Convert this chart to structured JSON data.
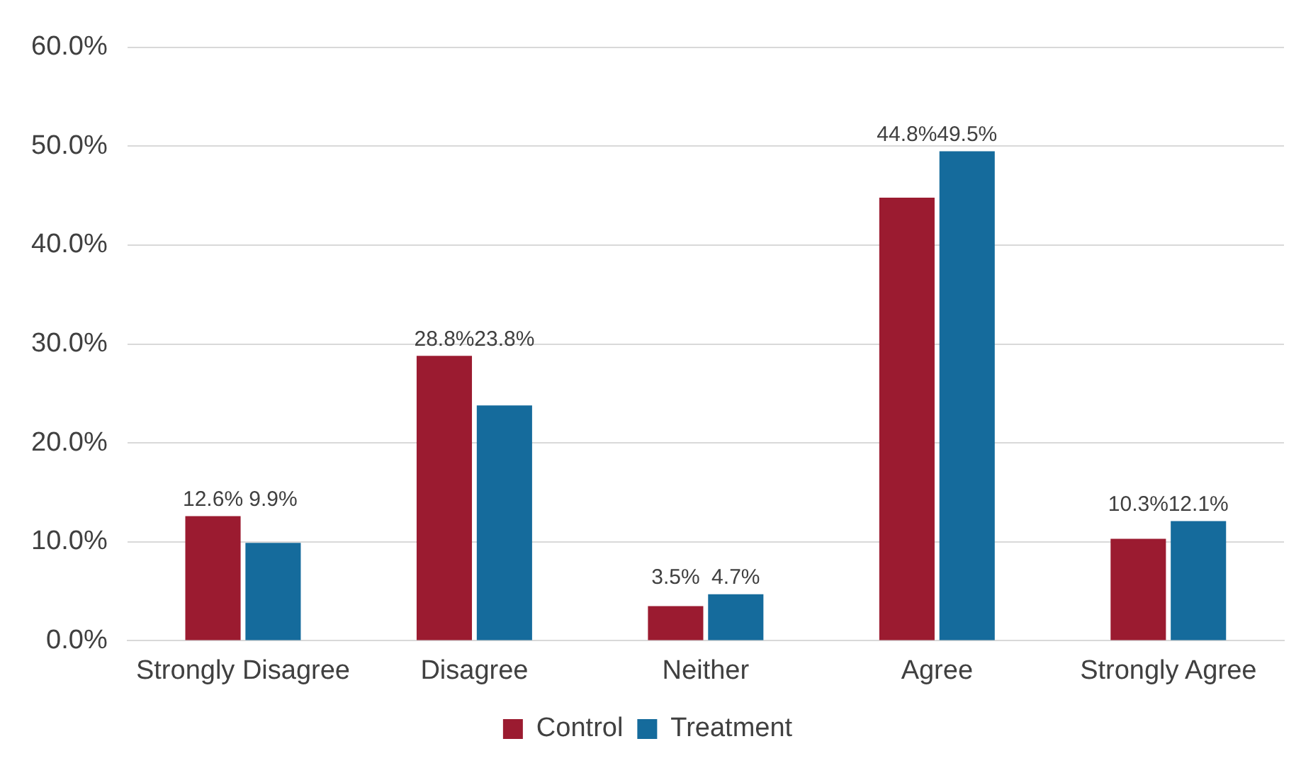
{
  "chart_data": {
    "type": "bar",
    "categories": [
      "Strongly Disagree",
      "Disagree",
      "Neither",
      "Agree",
      "Strongly Agree"
    ],
    "series": [
      {
        "name": "Control",
        "color": "#9b1b30",
        "values": [
          12.6,
          28.8,
          3.5,
          44.8,
          10.3
        ],
        "value_labels": [
          "12.6%",
          "28.8%",
          "3.5%",
          "44.8%",
          "10.3%"
        ]
      },
      {
        "name": "Treatment",
        "color": "#156b9c",
        "values": [
          9.9,
          23.8,
          4.7,
          49.5,
          12.1
        ],
        "value_labels": [
          "9.9%",
          "23.8%",
          "4.7%",
          "49.5%",
          "12.1%"
        ]
      }
    ],
    "ylim": [
      0,
      60
    ],
    "yticks": [
      {
        "value": 0,
        "label": "0.0%"
      },
      {
        "value": 10,
        "label": "10.0%"
      },
      {
        "value": 20,
        "label": "20.0%"
      },
      {
        "value": 30,
        "label": "30.0%"
      },
      {
        "value": 40,
        "label": "40.0%"
      },
      {
        "value": 50,
        "label": "50.0%"
      },
      {
        "value": 60,
        "label": "60.0%"
      }
    ],
    "grid": "y",
    "legend": "bottom"
  }
}
